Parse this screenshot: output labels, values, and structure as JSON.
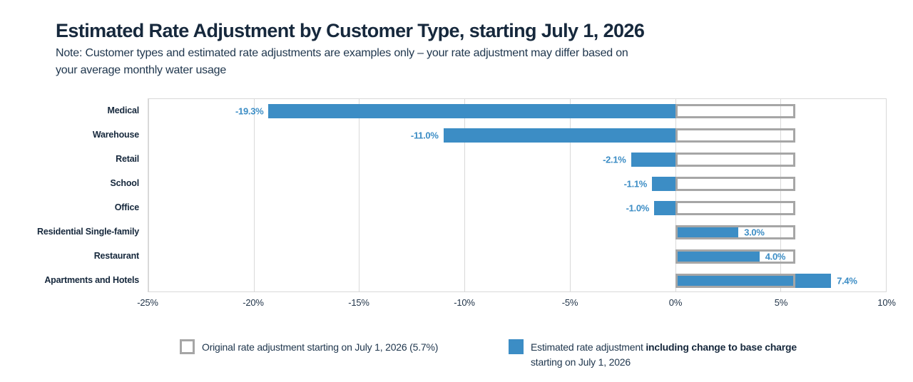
{
  "header": {
    "title": "Estimated Rate Adjustment by Customer Type, starting July 1, 2026",
    "note_line1": "Note: Customer types and estimated rate adjustments are examples only – your rate adjustment may differ based on",
    "note_line2": "your average monthly water usage"
  },
  "chart_data": {
    "type": "bar",
    "orientation": "horizontal",
    "categories": [
      "Medical",
      "Warehouse",
      "Retail",
      "School",
      "Office",
      "Residential Single-family",
      "Restaurant",
      "Apartments and Hotels"
    ],
    "series": [
      {
        "name": "Estimated rate adjustment including change to base charge starting on July 1, 2026",
        "values": [
          -19.3,
          -11.0,
          -2.1,
          -1.1,
          -1.0,
          3.0,
          4.0,
          7.4
        ],
        "labels": [
          "-19.3%",
          "-11.0%",
          "-2.1%",
          "-1.1%",
          "-1.0%",
          "3.0%",
          "4.0%",
          "7.4%"
        ],
        "style": "filled",
        "color": "#3C8DC5"
      },
      {
        "name": "Original rate adjustment starting on July 1, 2026 (5.7%)",
        "values": [
          5.7,
          5.7,
          5.7,
          5.7,
          5.7,
          5.7,
          5.7,
          5.7
        ],
        "style": "outline",
        "color": "#A6A6A6"
      }
    ],
    "xlim": [
      -25,
      10
    ],
    "xticks": [
      -25,
      -20,
      -15,
      -10,
      -5,
      0,
      5,
      10
    ],
    "xtick_labels": [
      "-25%",
      "-20%",
      "-15%",
      "-10%",
      "-5%",
      "0%",
      "5%",
      "10%"
    ],
    "grid": true,
    "legend_position": "bottom"
  },
  "legend": {
    "original": {
      "label": "Original rate adjustment starting on July 1, 2026 (5.7%)"
    },
    "estimated": {
      "prefix": "Estimated rate adjustment ",
      "bold": "including change to base charge",
      "line2": "starting on July 1, 2026"
    }
  },
  "colors": {
    "bar_blue": "#3C8DC5",
    "outline_gray": "#A6A6A6",
    "grid_gray": "#D9D9D9",
    "text_navy": "#16283C"
  }
}
